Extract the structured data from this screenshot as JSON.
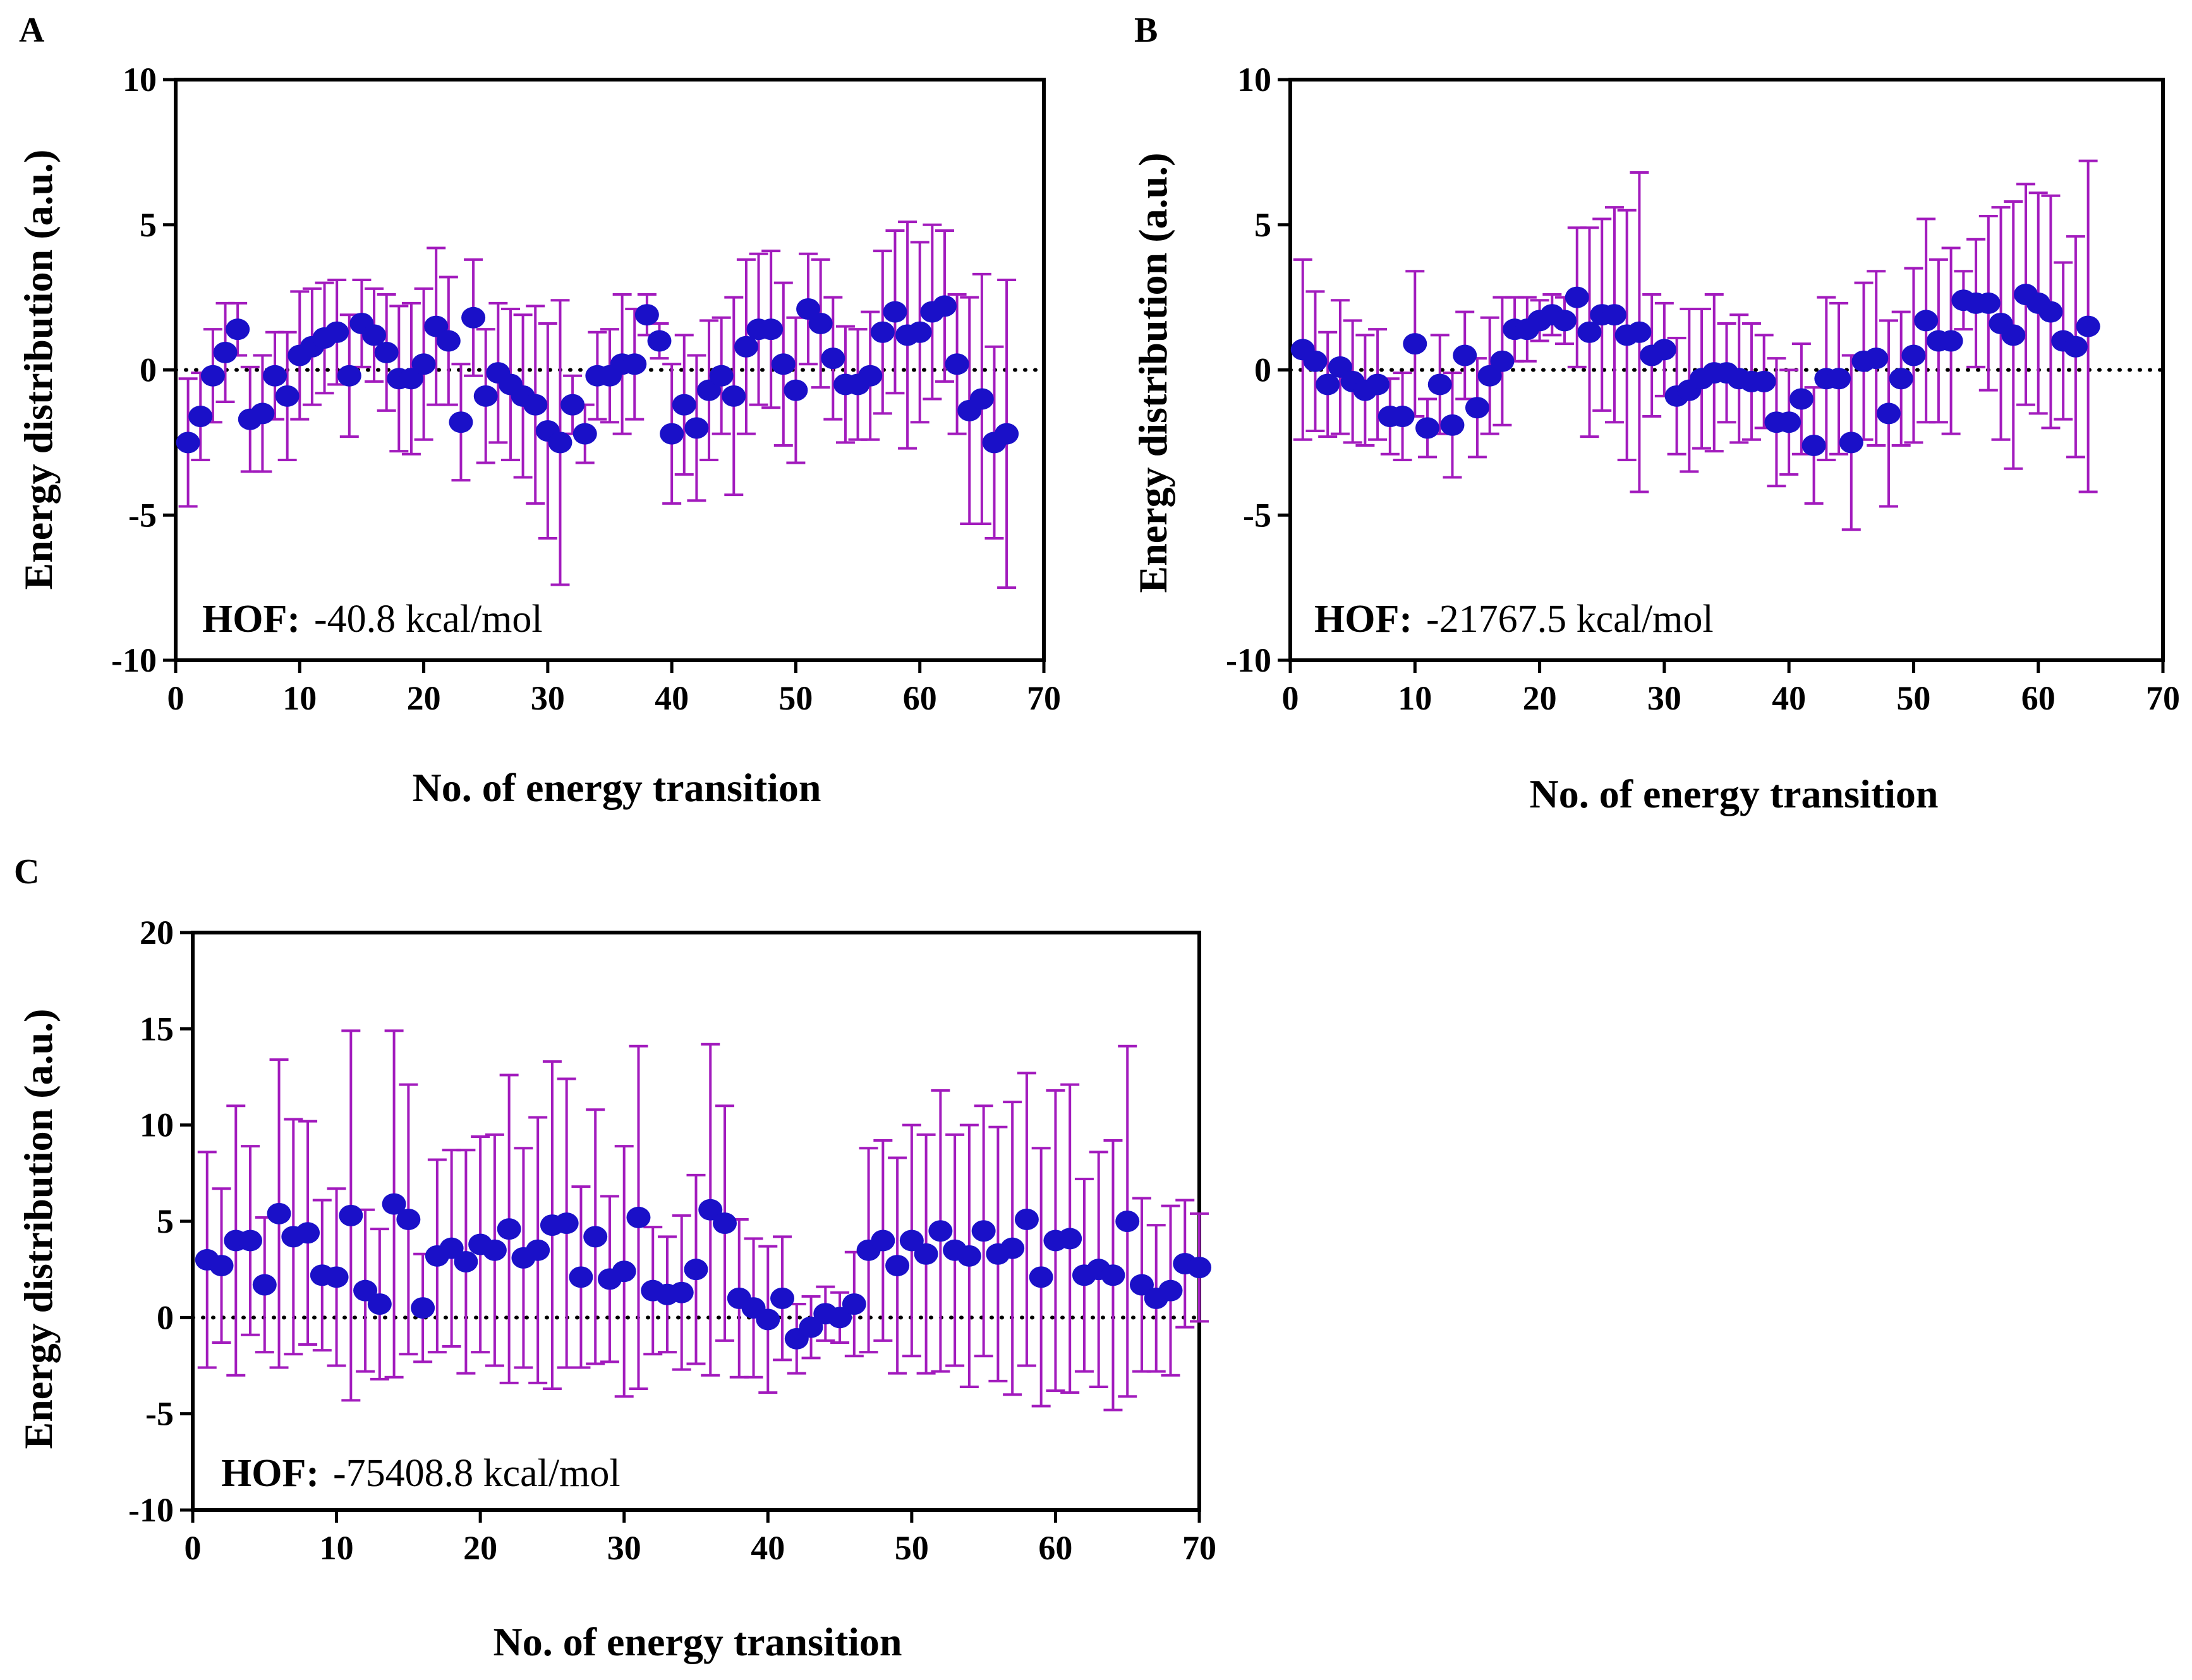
{
  "colors": {
    "marker": "#1a10c8",
    "error_bar": "#a21bbd",
    "axis": "#000000",
    "zero_line": "#000000"
  },
  "chart_data": [
    {
      "id": "A",
      "panel_label": "A",
      "type": "scatter",
      "xlabel": "No. of energy transition",
      "ylabel": "Energy distribution (a.u.)",
      "xlim": [
        0,
        70
      ],
      "ylim": [
        -10,
        10
      ],
      "xticks": [
        0,
        10,
        20,
        30,
        40,
        50,
        60,
        70
      ],
      "yticks": [
        -10,
        -5,
        0,
        5,
        10
      ],
      "annotation": {
        "key": "HOF:",
        "value": "-40.8 kcal/mol"
      },
      "zero_line": true,
      "x": [
        1,
        2,
        3,
        4,
        5,
        6,
        7,
        8,
        9,
        10,
        11,
        12,
        13,
        14,
        15,
        16,
        17,
        18,
        19,
        20,
        21,
        22,
        23,
        24,
        25,
        26,
        27,
        28,
        29,
        30,
        31,
        32,
        33,
        34,
        35,
        36,
        37,
        38,
        39,
        40,
        41,
        42,
        43,
        44,
        45,
        46,
        47,
        48,
        49,
        50,
        51,
        52,
        53,
        54,
        55,
        56,
        57,
        58,
        59,
        60,
        61,
        62,
        63,
        64,
        65,
        66,
        67
      ],
      "y": [
        -2.5,
        -1.6,
        -0.2,
        0.6,
        1.4,
        -1.7,
        -1.5,
        -0.2,
        -0.9,
        0.5,
        0.8,
        1.1,
        1.3,
        -0.2,
        1.6,
        1.2,
        0.6,
        -0.3,
        -0.3,
        0.2,
        1.5,
        1.0,
        -1.8,
        1.8,
        -0.9,
        -0.1,
        -0.5,
        -0.9,
        -1.2,
        -2.1,
        -2.5,
        -1.2,
        -2.2,
        -0.2,
        -0.2,
        0.2,
        0.2,
        1.9,
        1.0,
        -2.2,
        -1.2,
        -2.0,
        -0.7,
        -0.2,
        -0.9,
        0.8,
        1.4,
        1.4,
        0.2,
        -0.7,
        2.1,
        1.6,
        0.4,
        -0.5,
        -0.5,
        -0.2,
        1.3,
        2.0,
        1.2,
        1.3,
        2.0,
        2.2,
        0.2,
        -1.4,
        -1.0,
        -2.5,
        -2.2
      ],
      "yerr": [
        2.2,
        1.5,
        1.6,
        1.7,
        0.9,
        1.8,
        2.0,
        1.5,
        2.2,
        2.2,
        2.0,
        1.9,
        1.8,
        2.1,
        1.5,
        1.6,
        2.0,
        2.5,
        2.6,
        2.6,
        2.7,
        2.2,
        2.0,
        2.0,
        2.3,
        2.4,
        2.6,
        2.8,
        3.4,
        3.7,
        4.9,
        1.0,
        1.0,
        1.5,
        1.6,
        2.4,
        1.9,
        0.7,
        0.6,
        2.4,
        2.4,
        2.5,
        2.4,
        2.0,
        3.4,
        3.0,
        2.6,
        2.7,
        2.8,
        2.5,
        1.9,
        2.2,
        2.1,
        2.0,
        1.9,
        2.2,
        2.8,
        2.8,
        3.9,
        3.1,
        3.0,
        2.6,
        2.4,
        3.9,
        4.3,
        3.3,
        5.3
      ]
    },
    {
      "id": "B",
      "panel_label": "B",
      "type": "scatter",
      "xlabel": "No. of energy transition",
      "ylabel": "Energy distribution (a.u.)",
      "xlim": [
        0,
        70
      ],
      "ylim": [
        -10,
        10
      ],
      "xticks": [
        0,
        10,
        20,
        30,
        40,
        50,
        60,
        70
      ],
      "yticks": [
        -10,
        -5,
        0,
        5,
        10
      ],
      "annotation": {
        "key": "HOF:",
        "value": "-21767.5 kcal/mol"
      },
      "zero_line": true,
      "x": [
        1,
        2,
        3,
        4,
        5,
        6,
        7,
        8,
        9,
        10,
        11,
        12,
        13,
        14,
        15,
        16,
        17,
        18,
        19,
        20,
        21,
        22,
        23,
        24,
        25,
        26,
        27,
        28,
        29,
        30,
        31,
        32,
        33,
        34,
        35,
        36,
        37,
        38,
        39,
        40,
        41,
        42,
        43,
        44,
        45,
        46,
        47,
        48,
        49,
        50,
        51,
        52,
        53,
        54,
        55,
        56,
        57,
        58,
        59,
        60,
        61,
        62,
        63,
        64
      ],
      "y": [
        0.7,
        0.3,
        -0.5,
        0.1,
        -0.4,
        -0.7,
        -0.5,
        -1.6,
        -1.6,
        0.9,
        -2.0,
        -0.5,
        -1.9,
        0.5,
        -1.3,
        -0.2,
        0.3,
        1.4,
        1.4,
        1.7,
        1.9,
        1.7,
        2.5,
        1.3,
        1.9,
        1.9,
        1.2,
        1.3,
        0.5,
        0.7,
        -0.9,
        -0.7,
        -0.3,
        -0.1,
        -0.1,
        -0.3,
        -0.4,
        -0.4,
        -1.8,
        -1.8,
        -1.0,
        -2.6,
        -0.3,
        -0.3,
        -2.5,
        0.3,
        0.4,
        -1.5,
        -0.3,
        0.5,
        1.7,
        1.0,
        1.0,
        2.4,
        2.3,
        2.3,
        1.6,
        1.2,
        2.6,
        2.3,
        2.0,
        1.0,
        0.8,
        1.5
      ],
      "yerr": [
        3.1,
        2.4,
        1.8,
        2.3,
        2.1,
        1.9,
        1.9,
        1.3,
        1.5,
        2.5,
        1.0,
        1.7,
        1.8,
        1.5,
        1.7,
        2.0,
        2.2,
        1.1,
        1.1,
        0.7,
        0.7,
        0.8,
        2.4,
        3.6,
        3.3,
        3.7,
        4.3,
        5.5,
        2.1,
        1.6,
        2.0,
        2.8,
        2.4,
        2.7,
        1.7,
        2.2,
        2.0,
        1.6,
        2.2,
        1.8,
        1.9,
        2.0,
        2.8,
        2.6,
        3.0,
        2.7,
        3.0,
        3.2,
        2.3,
        3.0,
        3.5,
        2.8,
        3.2,
        1.0,
        2.2,
        3.0,
        4.0,
        4.6,
        3.8,
        3.8,
        4.0,
        2.7,
        3.8,
        5.7
      ]
    },
    {
      "id": "C",
      "panel_label": "C",
      "type": "scatter",
      "xlabel": "No. of energy transition",
      "ylabel": "Energy distribution (a.u.)",
      "xlim": [
        0,
        70
      ],
      "ylim": [
        -10,
        20
      ],
      "xticks": [
        0,
        10,
        20,
        30,
        40,
        50,
        60,
        70
      ],
      "yticks": [
        -10,
        -5,
        0,
        5,
        10,
        15,
        20
      ],
      "annotation": {
        "key": "HOF:",
        "value": "-75408.8 kcal/mol"
      },
      "zero_line": true,
      "x": [
        1,
        2,
        3,
        4,
        5,
        6,
        7,
        8,
        9,
        10,
        11,
        12,
        13,
        14,
        15,
        16,
        17,
        18,
        19,
        20,
        21,
        22,
        23,
        24,
        25,
        26,
        27,
        28,
        29,
        30,
        31,
        32,
        33,
        34,
        35,
        36,
        37,
        38,
        39,
        40,
        41,
        42,
        43,
        44,
        45,
        46,
        47,
        48,
        49,
        50,
        51,
        52,
        53,
        54,
        55,
        56,
        57,
        58,
        59,
        60,
        61,
        62,
        63,
        64,
        65,
        66,
        67,
        68,
        69,
        70
      ],
      "y": [
        3.0,
        2.7,
        4.0,
        4.0,
        1.7,
        5.4,
        4.2,
        4.4,
        2.2,
        2.1,
        5.3,
        1.4,
        0.7,
        5.9,
        5.1,
        0.5,
        3.2,
        3.6,
        2.9,
        3.8,
        3.5,
        4.6,
        3.1,
        3.5,
        4.8,
        4.9,
        2.1,
        4.2,
        2.0,
        2.4,
        5.2,
        1.4,
        1.2,
        1.3,
        2.5,
        5.6,
        4.9,
        1.0,
        0.5,
        -0.1,
        1.0,
        -1.1,
        -0.5,
        0.2,
        0.0,
        0.7,
        3.5,
        4.0,
        2.7,
        4.0,
        3.3,
        4.5,
        3.5,
        3.2,
        4.5,
        3.3,
        3.6,
        5.1,
        2.1,
        4.0,
        4.1,
        2.2,
        2.5,
        2.2,
        5.0,
        1.7,
        1.0,
        1.4,
        2.8,
        2.6
      ],
      "yerr": [
        5.6,
        4.0,
        7.0,
        4.9,
        3.5,
        8.0,
        6.1,
        5.8,
        3.9,
        4.6,
        9.6,
        4.2,
        3.9,
        9.0,
        7.0,
        2.8,
        5.0,
        5.1,
        5.8,
        5.6,
        6.0,
        8.0,
        5.7,
        6.9,
        8.5,
        7.5,
        4.7,
        6.6,
        4.3,
        6.5,
        8.9,
        3.3,
        3.0,
        4.0,
        4.9,
        8.6,
        6.1,
        4.1,
        3.6,
        3.8,
        3.2,
        1.8,
        1.6,
        1.4,
        1.3,
        2.7,
        5.3,
        5.2,
        5.6,
        6.0,
        6.2,
        7.3,
        6.0,
        6.8,
        6.5,
        6.6,
        7.6,
        7.6,
        6.7,
        7.8,
        8.0,
        5.0,
        6.1,
        7.0,
        9.1,
        4.5,
        3.8,
        4.4,
        3.3,
        2.8
      ]
    }
  ]
}
